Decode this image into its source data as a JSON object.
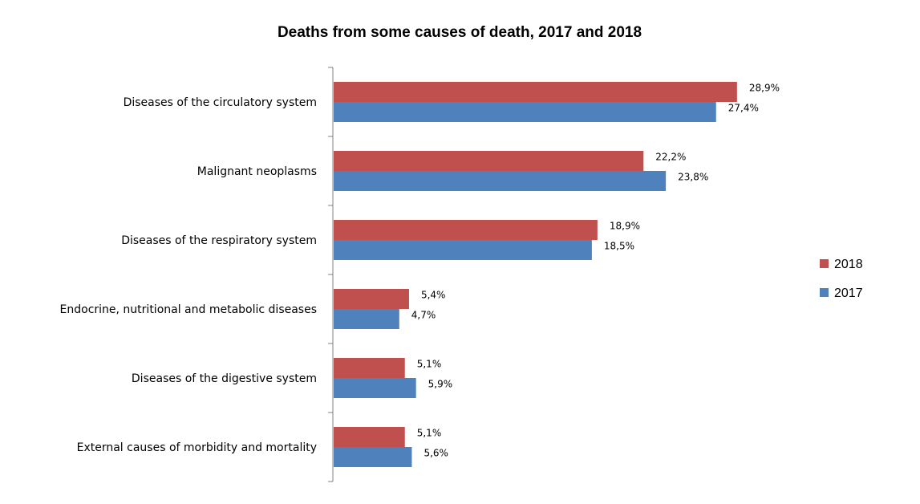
{
  "chart_data": {
    "type": "bar",
    "orientation": "horizontal",
    "title": "Deaths from some causes of death, 2017 and 2018",
    "categories": [
      "Diseases of the circulatory system",
      "Malignant neoplasms",
      "Diseases of the respiratory system",
      "Endocrine, nutritional and metabolic diseases",
      "Diseases of the digestive system",
      "External causes of morbidity and mortality"
    ],
    "series": [
      {
        "name": "2018",
        "color": "#c0504d",
        "values": [
          28.9,
          22.2,
          18.9,
          5.4,
          5.1,
          5.1
        ],
        "labels": [
          "28,9%",
          "22,2%",
          "18,9%",
          "5,4%",
          "5,1%",
          "5,1%"
        ]
      },
      {
        "name": "2017",
        "color": "#4f81bd",
        "values": [
          27.4,
          23.8,
          18.5,
          4.7,
          5.9,
          5.6
        ],
        "labels": [
          "27,4%",
          "23,8%",
          "18,5%",
          "4,7%",
          "5,9%",
          "5,6%"
        ]
      }
    ],
    "xlim": [
      0,
      30
    ],
    "grid": false,
    "legend_position": "right"
  }
}
